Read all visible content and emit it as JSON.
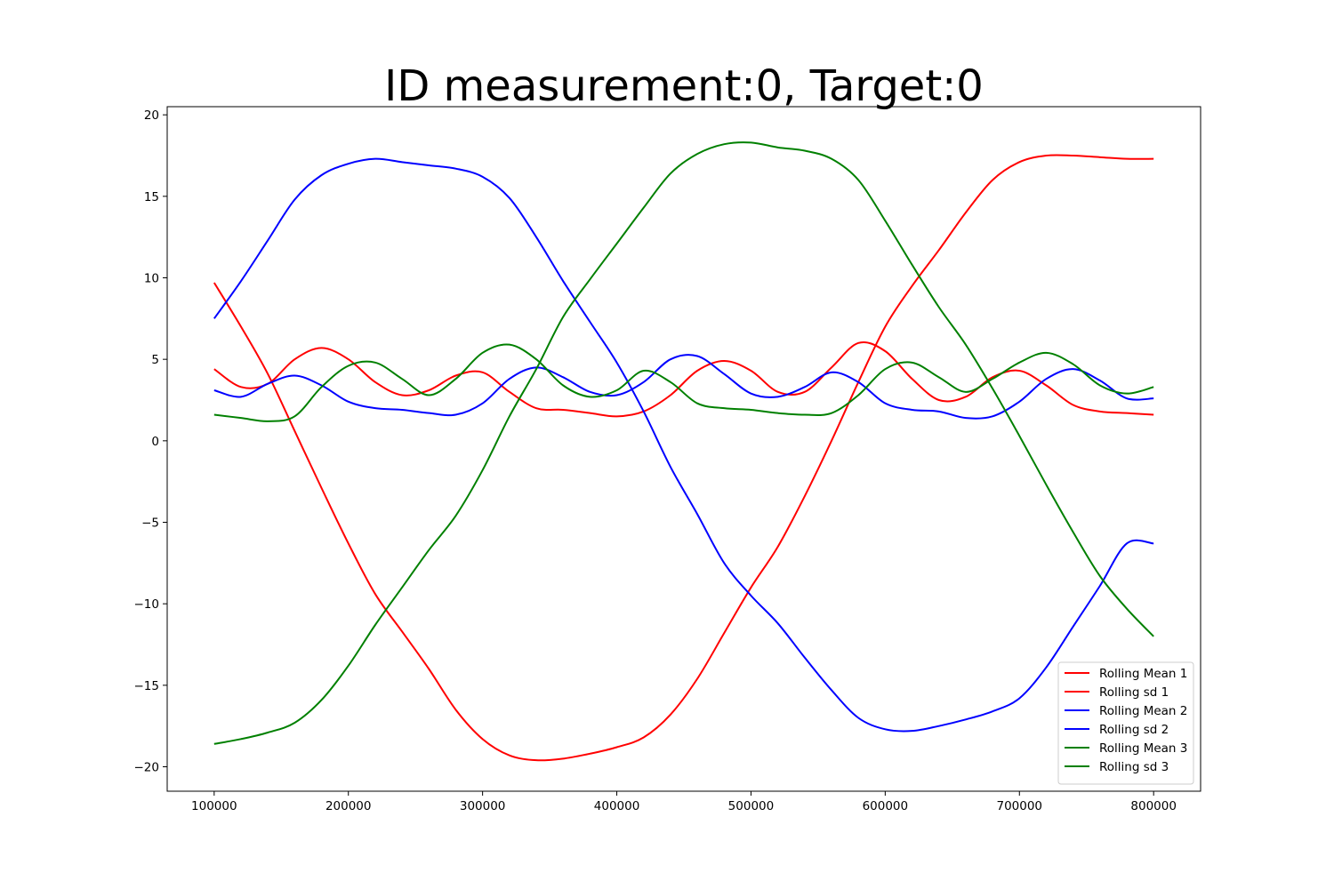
{
  "chart_data": {
    "type": "line",
    "title": "ID measurement:0, Target:0",
    "xlabel": "",
    "ylabel": "",
    "xlim": [
      65000,
      835000
    ],
    "ylim": [
      -21.5,
      20.5
    ],
    "xticks": [
      100000,
      200000,
      300000,
      400000,
      500000,
      600000,
      700000,
      800000
    ],
    "xtick_labels": [
      "100000",
      "200000",
      "300000",
      "400000",
      "500000",
      "600000",
      "700000",
      "800000"
    ],
    "yticks": [
      20,
      15,
      10,
      5,
      0,
      -5,
      -10,
      -15,
      -20
    ],
    "ytick_labels": [
      "20",
      "15",
      "10",
      "5",
      "0",
      "−5",
      "−10",
      "−15",
      "−20"
    ],
    "grid": false,
    "legend_position": "lower-right",
    "x": [
      100000,
      120000,
      140000,
      160000,
      180000,
      200000,
      220000,
      240000,
      260000,
      280000,
      300000,
      320000,
      340000,
      360000,
      380000,
      400000,
      420000,
      440000,
      460000,
      480000,
      500000,
      520000,
      540000,
      560000,
      580000,
      600000,
      620000,
      640000,
      660000,
      680000,
      700000,
      720000,
      740000,
      760000,
      780000,
      800000
    ],
    "series": [
      {
        "name": "Rolling Mean 1",
        "color": "#ff0000",
        "values": [
          9.7,
          7.0,
          4.1,
          0.6,
          -2.9,
          -6.3,
          -9.4,
          -11.7,
          -14.0,
          -16.5,
          -18.3,
          -19.3,
          -19.6,
          -19.5,
          -19.2,
          -18.8,
          -18.2,
          -16.8,
          -14.6,
          -11.8,
          -9.0,
          -6.5,
          -3.4,
          0.0,
          3.6,
          7.0,
          9.5,
          11.7,
          14.0,
          16.0,
          17.1,
          17.5,
          17.5,
          17.4,
          17.3,
          17.3
        ]
      },
      {
        "name": "Rolling sd 1",
        "color": "#ff0000",
        "values": [
          4.4,
          3.3,
          3.5,
          5.0,
          5.7,
          5.0,
          3.6,
          2.8,
          3.1,
          4.0,
          4.2,
          3.0,
          2.0,
          1.9,
          1.7,
          1.5,
          1.8,
          2.8,
          4.3,
          4.9,
          4.3,
          3.0,
          3.0,
          4.5,
          6.0,
          5.5,
          3.8,
          2.5,
          2.7,
          3.9,
          4.3,
          3.4,
          2.2,
          1.8,
          1.7,
          1.6
        ]
      },
      {
        "name": "Rolling Mean 2",
        "color": "#0000ff",
        "values": [
          7.5,
          9.8,
          12.3,
          14.8,
          16.3,
          17.0,
          17.3,
          17.1,
          16.9,
          16.7,
          16.2,
          14.9,
          12.5,
          9.8,
          7.3,
          4.8,
          1.8,
          -1.6,
          -4.5,
          -7.5,
          -9.5,
          -11.2,
          -13.3,
          -15.3,
          -17.0,
          -17.7,
          -17.8,
          -17.5,
          -17.1,
          -16.6,
          -15.8,
          -13.9,
          -11.4,
          -8.9,
          -6.3,
          -6.3
        ]
      },
      {
        "name": "Rolling sd 2",
        "color": "#0000ff",
        "values": [
          3.1,
          2.7,
          3.5,
          4.0,
          3.4,
          2.4,
          2.0,
          1.9,
          1.7,
          1.6,
          2.3,
          3.8,
          4.5,
          3.9,
          3.0,
          2.8,
          3.6,
          5.0,
          5.2,
          4.1,
          2.9,
          2.7,
          3.3,
          4.2,
          3.6,
          2.3,
          1.9,
          1.8,
          1.4,
          1.5,
          2.4,
          3.8,
          4.4,
          3.7,
          2.6,
          2.6
        ]
      },
      {
        "name": "Rolling Mean 3",
        "color": "#008000",
        "values": [
          -18.6,
          -18.3,
          -17.9,
          -17.3,
          -15.9,
          -13.8,
          -11.3,
          -9.0,
          -6.7,
          -4.6,
          -1.8,
          1.5,
          4.4,
          7.6,
          9.9,
          12.1,
          14.3,
          16.4,
          17.6,
          18.2,
          18.3,
          18.0,
          17.8,
          17.3,
          16.0,
          13.5,
          10.8,
          8.2,
          5.9,
          3.2,
          0.3,
          -2.7,
          -5.6,
          -8.3,
          -10.3,
          -12.0
        ]
      },
      {
        "name": "Rolling sd 3",
        "color": "#008000",
        "values": [
          1.6,
          1.4,
          1.2,
          1.5,
          3.3,
          4.6,
          4.8,
          3.8,
          2.8,
          3.8,
          5.4,
          5.9,
          5.0,
          3.4,
          2.7,
          3.1,
          4.3,
          3.6,
          2.3,
          2.0,
          1.9,
          1.7,
          1.6,
          1.7,
          2.8,
          4.4,
          4.8,
          3.9,
          3.0,
          3.8,
          4.8,
          5.4,
          4.7,
          3.4,
          2.9,
          3.3
        ]
      }
    ]
  }
}
